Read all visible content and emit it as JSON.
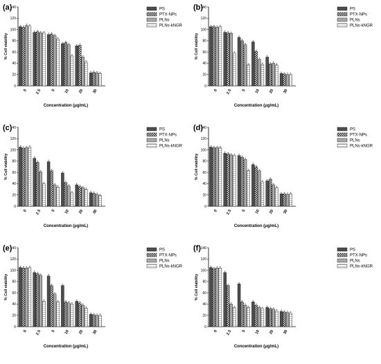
{
  "figure": {
    "legend_labels": [
      "PS",
      "PTX-NPs",
      "PLNs",
      "PLNs-kNGR"
    ],
    "ylabel": "% Cell viability",
    "xlabel": "Concentration (μg/mL)",
    "categories": [
      "0",
      "2.5",
      "5",
      "10",
      "20",
      "30"
    ],
    "yticks": [
      "0",
      "20",
      "40",
      "60",
      "80",
      "100",
      "120",
      "140"
    ],
    "series_colors": [
      "#4d4d4d",
      "#2a2a2a",
      "#a6a6a6",
      "#ffffff"
    ],
    "series_patterns": [
      "solid",
      "checker",
      "solid-light",
      "hatch"
    ]
  },
  "chart_data": [
    {
      "type": "bar",
      "panel": "(a)",
      "categories": [
        "0",
        "2.5",
        "5",
        "10",
        "20",
        "30"
      ],
      "xlabel": "Concentration (μg/mL)",
      "ylabel": "% Cell viability",
      "ylim": [
        0,
        140
      ],
      "legend_position": "top-right",
      "series": [
        {
          "name": "PS",
          "values": [
            105,
            95,
            91,
            75,
            71,
            23
          ]
        },
        {
          "name": "PTX-NPs",
          "values": [
            104,
            96,
            92,
            77,
            72,
            24
          ]
        },
        {
          "name": "PLNs",
          "values": [
            107,
            94,
            89,
            73,
            51,
            23
          ]
        },
        {
          "name": "PLNs-kNGR",
          "values": [
            106,
            94,
            83,
            53,
            42,
            22
          ]
        }
      ]
    },
    {
      "type": "bar",
      "panel": "(b)",
      "categories": [
        "0",
        "2.5",
        "5",
        "10",
        "20",
        "30"
      ],
      "xlabel": "Concentration (μg/mL)",
      "ylabel": "% Cell viability",
      "ylim": [
        0,
        140
      ],
      "legend_position": "top-right",
      "series": [
        {
          "name": "PS",
          "values": [
            105,
            95,
            86,
            78,
            51,
            22
          ]
        },
        {
          "name": "PTX-NPs",
          "values": [
            105,
            94,
            80,
            61,
            39,
            21
          ]
        },
        {
          "name": "PLNs",
          "values": [
            104,
            93,
            73,
            47,
            40,
            20
          ]
        },
        {
          "name": "PLNs-kNGR",
          "values": [
            105,
            58,
            37,
            38,
            37,
            20
          ]
        }
      ]
    },
    {
      "type": "bar",
      "panel": "(c)",
      "categories": [
        "0",
        "2.5",
        "5",
        "10",
        "20",
        "30"
      ],
      "xlabel": "Concentration (μg/mL)",
      "ylabel": "% Cell viability",
      "ylim": [
        0,
        140
      ],
      "legend_position": "top-right",
      "series": [
        {
          "name": "PS",
          "values": [
            105,
            85,
            79,
            59,
            38,
            24
          ]
        },
        {
          "name": "PTX-NPs",
          "values": [
            103,
            78,
            63,
            42,
            35,
            23
          ]
        },
        {
          "name": "PLNs",
          "values": [
            104,
            61,
            38,
            36,
            33,
            21
          ]
        },
        {
          "name": "PLNs-kNGR",
          "values": [
            105,
            40,
            34,
            24,
            30,
            19
          ]
        }
      ]
    },
    {
      "type": "bar",
      "panel": "(d)",
      "categories": [
        "0",
        "2.5",
        "5",
        "10",
        "20",
        "30"
      ],
      "xlabel": "Concentration (μg/mL)",
      "ylabel": "% Cell viability",
      "ylim": [
        0,
        140
      ],
      "legend_position": "top-right",
      "series": [
        {
          "name": "PS",
          "values": [
            105,
            94,
            90,
            74,
            45,
            22
          ]
        },
        {
          "name": "PTX-NPs",
          "values": [
            104,
            93,
            87,
            70,
            48,
            22
          ]
        },
        {
          "name": "PLNs",
          "values": [
            104,
            91,
            83,
            63,
            38,
            21
          ]
        },
        {
          "name": "PLNs-kNGR",
          "values": [
            104,
            90,
            63,
            43,
            33,
            22
          ]
        }
      ]
    },
    {
      "type": "bar",
      "panel": "(e)",
      "categories": [
        "0",
        "2.5",
        "5",
        "10",
        "20",
        "30"
      ],
      "xlabel": "Concentration (μg/mL)",
      "ylabel": "% Cell viability",
      "ylim": [
        0,
        140
      ],
      "legend_position": "top-right",
      "series": [
        {
          "name": "PS",
          "values": [
            105,
            96,
            90,
            73,
            45,
            22
          ]
        },
        {
          "name": "PTX-NPs",
          "values": [
            104,
            94,
            73,
            44,
            42,
            21
          ]
        },
        {
          "name": "PLNs",
          "values": [
            104,
            91,
            58,
            42,
            38,
            20
          ]
        },
        {
          "name": "PLNs-kNGR",
          "values": [
            105,
            45,
            44,
            40,
            33,
            20
          ]
        }
      ]
    },
    {
      "type": "bar",
      "panel": "(f)",
      "categories": [
        "0",
        "2.5",
        "5",
        "10",
        "20",
        "30"
      ],
      "xlabel": "Concentration (μg/mL)",
      "ylabel": "% Cell viability",
      "ylim": [
        0,
        140
      ],
      "legend_position": "top-right",
      "series": [
        {
          "name": "PS",
          "values": [
            105,
            96,
            76,
            44,
            34,
            27
          ]
        },
        {
          "name": "PTX-NPs",
          "values": [
            103,
            73,
            44,
            38,
            32,
            26
          ]
        },
        {
          "name": "PLNs",
          "values": [
            104,
            40,
            38,
            34,
            31,
            25
          ]
        },
        {
          "name": "PLNs-kNGR",
          "values": [
            104,
            34,
            34,
            32,
            28,
            24
          ]
        }
      ]
    }
  ]
}
